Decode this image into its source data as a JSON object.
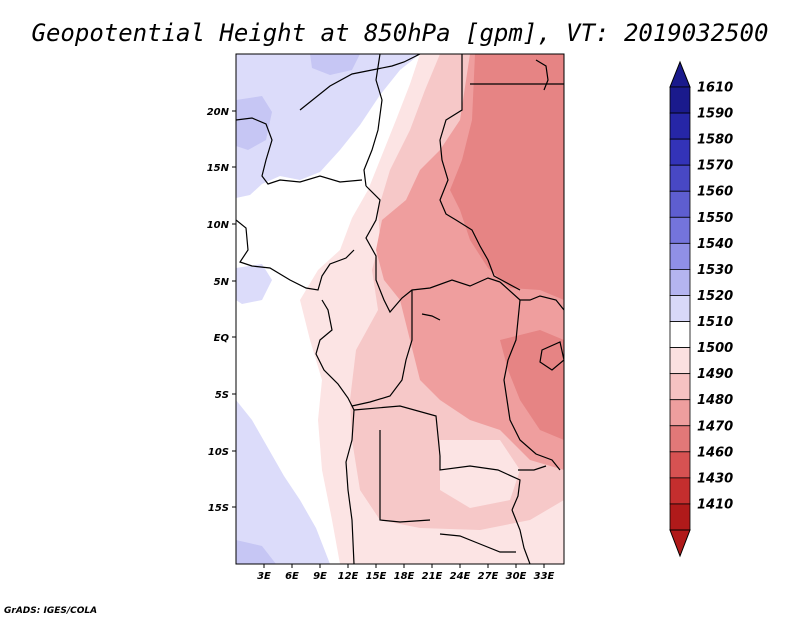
{
  "title": "Geopotential Height at 850hPa [gpm], VT: 2019032500",
  "credit": "GrADS: IGES/COLA",
  "lat_labels": [
    "20N",
    "15N",
    "10N",
    "5N",
    "EQ",
    "5S",
    "10S",
    "15S"
  ],
  "lon_labels": [
    "3E",
    "6E",
    "9E",
    "12E",
    "15E",
    "18E",
    "21E",
    "24E",
    "27E",
    "30E",
    "33E"
  ],
  "colorbar": {
    "labels": [
      "1610",
      "1590",
      "1580",
      "1570",
      "1560",
      "1550",
      "1540",
      "1530",
      "1520",
      "1510",
      "1500",
      "1490",
      "1480",
      "1470",
      "1460",
      "1430",
      "1410"
    ],
    "colors": [
      "#1a1a8c",
      "#2626a6",
      "#3333b8",
      "#4848c4",
      "#5e5ed0",
      "#7474dc",
      "#9090e6",
      "#b4b4f0",
      "#d8d8f8",
      "#ffffff",
      "#fbe0e0",
      "#f6c2c2",
      "#ee9e9e",
      "#e27878",
      "#d65252",
      "#c42e2e",
      "#b01a1a"
    ]
  },
  "colors": {
    "ocean_lavender": "#dcdcfa",
    "ocean_blue": "#c6c6f4",
    "land_light_pink": "#fce4e4",
    "land_pink": "#f6c8c8",
    "land_mid": "#ef9e9e",
    "land_dark": "#e68484"
  }
}
